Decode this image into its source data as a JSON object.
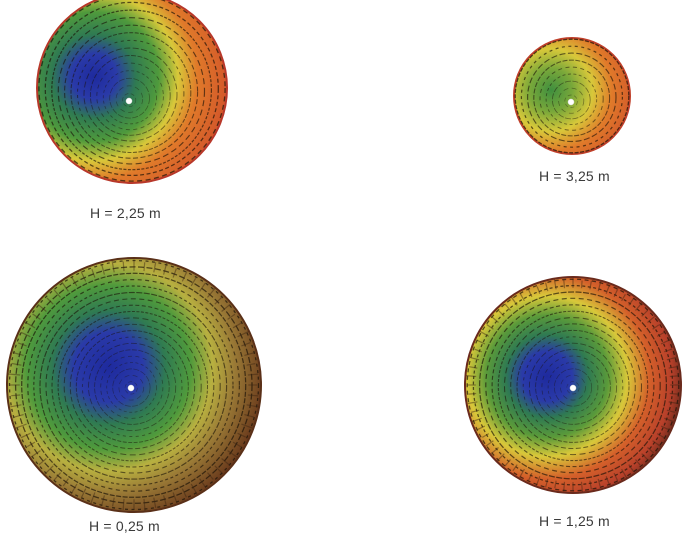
{
  "diagram": {
    "panels": [
      {
        "caption": "H = 2,25 m",
        "colors": [
          "#1e2a9e",
          "#3f8f3f",
          "#d8c83a",
          "#d0402a"
        ]
      },
      {
        "caption": "H = 3,25 m",
        "colors": [
          "#3f8f3f",
          "#d8c83a",
          "#d04a2a"
        ]
      },
      {
        "caption": "H = 0,25 m",
        "colors": [
          "#1e2a9e",
          "#3f8f3f",
          "#c8b040",
          "#6a3a1c"
        ]
      },
      {
        "caption": "H = 1,25 m",
        "colors": [
          "#1e2a9e",
          "#3f8f3f",
          "#d8c83a",
          "#c8402a",
          "#6a2a1c"
        ]
      }
    ]
  }
}
